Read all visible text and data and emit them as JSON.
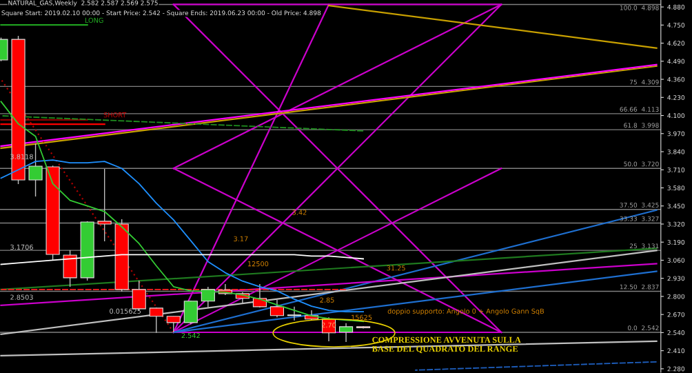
{
  "chart_data": {
    "type": "candlestick",
    "title": "NATURAL_GAS,Weekly  2.582 2.587 2.569 2.575",
    "subtitle": "Square Start: 2019.02.10 00:00 - Start Price: 2.542 - Square Ends: 2019.06.23 00:00 - Old Price: 4.898",
    "categories": [
      null,
      null,
      null,
      null,
      null,
      null,
      null,
      null,
      null,
      null,
      null,
      null,
      null,
      null,
      null,
      null,
      null,
      null,
      null,
      null,
      null,
      null,
      null,
      null,
      null,
      null,
      null,
      null,
      null,
      null,
      null,
      null,
      null,
      null,
      null,
      null,
      null,
      null,
      null
    ],
    "ohlc": [
      [
        4.499,
        4.66,
        4.49,
        4.647
      ],
      [
        4.647,
        4.672,
        3.607,
        3.637
      ],
      [
        3.637,
        3.899,
        3.518,
        3.736
      ],
      [
        3.731,
        3.74,
        3.058,
        3.102
      ],
      [
        3.097,
        3.132,
        2.869,
        2.934
      ],
      [
        2.934,
        3.34,
        2.914,
        3.335
      ],
      [
        3.34,
        3.716,
        3.196,
        3.32
      ],
      [
        3.32,
        3.355,
        2.835,
        2.85
      ],
      [
        2.85,
        2.914,
        2.7,
        2.711
      ],
      [
        2.716,
        2.72,
        2.538,
        2.657
      ],
      [
        2.657,
        2.657,
        2.542,
        2.612
      ],
      [
        2.612,
        2.77,
        2.6,
        2.766
      ],
      [
        2.766,
        2.869,
        2.721,
        2.85
      ],
      [
        2.845,
        2.889,
        2.81,
        2.82
      ],
      [
        2.82,
        2.83,
        2.746,
        2.786
      ],
      [
        2.786,
        2.889,
        2.72,
        2.726
      ],
      [
        2.726,
        2.775,
        2.65,
        2.662
      ],
      [
        2.667,
        2.726,
        2.627,
        2.662
      ],
      [
        2.662,
        2.7,
        2.63,
        2.637
      ],
      [
        2.637,
        2.65,
        2.478,
        2.538
      ],
      [
        2.543,
        2.607,
        2.473,
        2.582
      ],
      [
        2.582,
        2.587,
        2.569,
        2.575
      ],
      null,
      null,
      null,
      null,
      null,
      null,
      null,
      null,
      null,
      null,
      null,
      null,
      null,
      null,
      null,
      null,
      null
    ],
    "colors": [
      "#33cc33",
      "#ff0000",
      "#33cc33",
      "#ff0000",
      "#ff0000",
      "#33cc33",
      "#ff0000",
      "#ff0000",
      "#ff0000",
      "#ff0000",
      "#ff0000",
      "#33cc33",
      "#33cc33",
      "#ff0000",
      "#ff0000",
      "#ff0000",
      "#ff0000",
      "#33cc33",
      "#ff0000",
      "#ff0000",
      "#33cc33",
      "#ff0000",
      null,
      null,
      null,
      null,
      null,
      null,
      null,
      null,
      null,
      null,
      null,
      null,
      null,
      null,
      null,
      null,
      null
    ],
    "series": [
      {
        "type": "line",
        "color": "#1e90ff",
        "values": [
          3.65,
          3.71,
          3.77,
          3.78,
          3.76,
          3.76,
          3.77,
          3.72,
          3.61,
          3.47,
          3.35,
          3.2,
          3.05,
          2.97,
          2.91,
          2.87,
          2.84,
          2.78,
          2.73,
          2.7,
          2.69,
          2.69,
          null,
          null,
          null,
          null,
          null,
          null,
          null,
          null,
          null,
          null,
          null,
          null,
          null,
          null,
          null,
          null,
          null
        ]
      },
      {
        "type": "line",
        "color": "#33cc33",
        "values": [
          4.2,
          4.04,
          3.95,
          3.61,
          3.49,
          3.45,
          3.41,
          3.3,
          3.18,
          3.02,
          2.87,
          2.84,
          2.835,
          2.83,
          2.81,
          2.78,
          2.74,
          2.7,
          2.66,
          2.64,
          2.63,
          2.62,
          null,
          null,
          null,
          null,
          null,
          null,
          null,
          null,
          null,
          null,
          null,
          null,
          null,
          null,
          null,
          null,
          null
        ]
      },
      {
        "type": "line",
        "color": "#ffffff",
        "values": [
          3.03,
          3.04,
          3.05,
          3.06,
          3.07,
          3.08,
          3.09,
          3.1,
          3.1,
          3.1,
          3.1,
          3.1,
          3.1,
          3.1,
          3.1,
          3.1,
          3.1,
          3.1,
          3.09,
          3.09,
          3.08,
          3.07,
          null,
          null,
          null,
          null,
          null,
          null,
          null,
          null,
          null,
          null,
          null,
          null,
          null,
          null,
          null,
          null,
          null
        ]
      },
      {
        "type": "line",
        "color": "#cc00cc",
        "values": [
          null,
          null,
          null,
          null,
          null,
          null,
          null,
          null,
          null,
          null,
          2.542,
          null,
          null,
          null,
          null,
          null,
          null,
          null,
          null,
          null,
          null,
          null,
          null,
          null,
          null,
          null,
          null,
          null,
          null,
          2.542,
          null,
          null,
          null,
          null,
          null,
          null,
          null,
          null,
          null
        ]
      },
      {
        "type": "line",
        "color": "#cc00cc",
        "values": [
          null,
          null,
          null,
          null,
          null,
          null,
          null,
          null,
          null,
          null,
          4.898,
          null,
          null,
          null,
          null,
          null,
          null,
          null,
          null,
          null,
          null,
          null,
          null,
          null,
          null,
          null,
          null,
          null,
          null,
          4.898,
          null,
          null,
          null,
          null,
          null,
          null,
          null,
          null,
          null
        ]
      },
      {
        "type": "line",
        "color": "#cc00cc",
        "values": [
          null,
          null,
          null,
          null,
          null,
          null,
          null,
          null,
          null,
          null,
          4.898,
          null,
          null,
          null,
          null,
          null,
          null,
          null,
          null,
          null,
          null,
          null,
          null,
          null,
          null,
          null,
          null,
          null,
          null,
          2.542,
          null,
          null,
          null,
          null,
          null,
          null,
          null,
          null,
          null
        ]
      },
      {
        "type": "line",
        "color": "#cc00cc",
        "values": [
          null,
          null,
          null,
          null,
          null,
          null,
          null,
          null,
          null,
          null,
          3.72,
          null,
          null,
          null,
          null,
          null,
          null,
          null,
          null,
          null,
          null,
          null,
          null,
          null,
          null,
          null,
          null,
          null,
          null,
          4.898,
          null,
          null,
          null,
          null,
          null,
          null,
          null,
          null,
          null
        ]
      },
      {
        "type": "line",
        "color": "#cc00cc",
        "values": [
          null,
          null,
          null,
          null,
          null,
          null,
          null,
          null,
          null,
          null,
          3.72,
          null,
          null,
          null,
          null,
          null,
          null,
          null,
          null,
          null,
          null,
          null,
          null,
          null,
          null,
          null,
          null,
          null,
          null,
          2.542,
          null,
          null,
          null,
          null,
          null,
          null,
          null,
          null,
          null
        ]
      },
      {
        "type": "line",
        "color": "#cc00cc",
        "values": [
          null,
          null,
          null,
          null,
          null,
          null,
          null,
          null,
          null,
          null,
          2.542,
          null,
          null,
          null,
          null,
          null,
          null,
          null,
          null,
          null,
          null,
          null,
          null,
          null,
          null,
          null,
          null,
          null,
          null,
          3.72,
          null,
          null,
          null,
          null,
          null,
          null,
          null,
          null,
          null
        ]
      },
      {
        "type": "line",
        "color": "#cc00cc",
        "values": [
          null,
          null,
          null,
          null,
          null,
          null,
          null,
          null,
          null,
          null,
          2.542,
          null,
          null,
          null,
          null,
          null,
          null,
          null,
          null,
          null,
          null,
          null,
          null,
          null,
          null,
          null,
          null,
          null,
          null,
          4.898,
          null,
          null,
          null,
          null,
          null,
          null,
          null,
          null,
          null
        ]
      },
      {
        "type": "line",
        "color": "#cc00cc",
        "values": [
          null,
          null,
          null,
          null,
          null,
          null,
          null,
          null,
          null,
          null,
          2.542,
          null,
          null,
          null,
          null,
          null,
          null,
          null,
          null,
          4.898,
          null,
          null,
          null,
          null,
          null,
          null,
          null,
          null,
          null,
          null,
          null,
          null,
          null,
          null,
          null,
          null,
          null,
          null,
          null
        ]
      },
      {
        "type": "line",
        "color": "#c8a000",
        "values": [
          3.865,
          null,
          null,
          null,
          null,
          null,
          null,
          null,
          null,
          null,
          null,
          null,
          null,
          null,
          null,
          null,
          null,
          null,
          null,
          null,
          null,
          null,
          null,
          null,
          null,
          null,
          null,
          null,
          null,
          null,
          null,
          null,
          null,
          null,
          null,
          null,
          null,
          null,
          4.455
        ]
      },
      {
        "type": "line",
        "color": "#ff00ff",
        "values": [
          3.88,
          null,
          null,
          null,
          null,
          null,
          null,
          null,
          null,
          null,
          null,
          null,
          null,
          null,
          null,
          null,
          null,
          null,
          null,
          null,
          null,
          null,
          null,
          null,
          null,
          null,
          null,
          null,
          null,
          null,
          null,
          null,
          null,
          null,
          null,
          null,
          null,
          null,
          4.465
        ]
      },
      {
        "type": "line",
        "color": "#c8a000",
        "values": [
          null,
          null,
          null,
          null,
          null,
          null,
          null,
          null,
          null,
          null,
          null,
          null,
          null,
          null,
          null,
          null,
          null,
          null,
          null,
          4.89,
          null,
          null,
          null,
          null,
          null,
          null,
          null,
          null,
          null,
          null,
          null,
          null,
          null,
          null,
          null,
          null,
          null,
          null,
          4.585
        ]
      },
      {
        "type": "line",
        "color": "#1e6fd0",
        "values": [
          null,
          null,
          null,
          null,
          null,
          null,
          null,
          null,
          null,
          null,
          2.542,
          null,
          null,
          null,
          null,
          null,
          null,
          null,
          null,
          null,
          null,
          null,
          null,
          null,
          null,
          null,
          null,
          null,
          null,
          null,
          null,
          null,
          null,
          null,
          null,
          null,
          null,
          null,
          3.42
        ]
      },
      {
        "type": "line",
        "color": "#1e6fd0",
        "values": [
          null,
          null,
          null,
          null,
          null,
          null,
          null,
          null,
          null,
          null,
          2.542,
          null,
          null,
          null,
          null,
          null,
          null,
          null,
          null,
          null,
          null,
          null,
          null,
          null,
          null,
          null,
          null,
          null,
          null,
          null,
          null,
          null,
          null,
          null,
          null,
          null,
          null,
          null,
          2.98
        ]
      },
      {
        "type": "line",
        "color": "#1f7a1f",
        "values": [
          2.85,
          null,
          null,
          null,
          null,
          null,
          null,
          null,
          null,
          null,
          null,
          null,
          null,
          null,
          null,
          null,
          null,
          null,
          null,
          null,
          null,
          null,
          null,
          null,
          null,
          null,
          null,
          null,
          null,
          null,
          null,
          null,
          null,
          null,
          null,
          null,
          null,
          null,
          3.145
        ]
      },
      {
        "type": "line",
        "color": "#cc00cc",
        "values": [
          2.736,
          null,
          null,
          null,
          null,
          null,
          null,
          null,
          null,
          null,
          null,
          null,
          null,
          null,
          null,
          null,
          null,
          null,
          null,
          null,
          null,
          null,
          null,
          null,
          null,
          null,
          null,
          null,
          null,
          null,
          null,
          null,
          null,
          null,
          null,
          null,
          null,
          null,
          3.035
        ]
      },
      {
        "type": "line",
        "color": "#c0c0c0",
        "values": [
          2.528,
          null,
          null,
          null,
          null,
          null,
          null,
          null,
          null,
          null,
          null,
          null,
          null,
          null,
          null,
          null,
          null,
          null,
          null,
          null,
          null,
          null,
          null,
          null,
          null,
          null,
          null,
          null,
          null,
          null,
          null,
          null,
          null,
          null,
          null,
          null,
          null,
          null,
          3.13
        ]
      },
      {
        "type": "line",
        "color": "#c0c0c0",
        "values": [
          2.374,
          null,
          null,
          null,
          null,
          null,
          null,
          null,
          null,
          null,
          null,
          null,
          null,
          null,
          null,
          null,
          null,
          null,
          null,
          null,
          null,
          null,
          null,
          null,
          null,
          null,
          null,
          null,
          null,
          null,
          null,
          null,
          null,
          null,
          null,
          null,
          null,
          null,
          2.478
        ]
      },
      {
        "type": "line",
        "color": "#1e5fbf",
        "line_style": "dashed",
        "values": [
          null,
          null,
          null,
          null,
          null,
          null,
          null,
          null,
          null,
          null,
          null,
          null,
          null,
          null,
          null,
          null,
          null,
          null,
          null,
          null,
          null,
          null,
          null,
          null,
          2.27,
          null,
          null,
          null,
          null,
          null,
          null,
          null,
          null,
          null,
          null,
          null,
          null,
          null,
          2.33
        ]
      },
      {
        "type": "line",
        "color": "#1f8f1f",
        "line_style": "dashed",
        "values": [
          4.098,
          null,
          null,
          null,
          null,
          null,
          null,
          null,
          null,
          null,
          null,
          null,
          null,
          null,
          null,
          null,
          null,
          null,
          null,
          null,
          null,
          3.989,
          null,
          null,
          null,
          null,
          null,
          null,
          null,
          null,
          null,
          null,
          null,
          null,
          null,
          null,
          null,
          null,
          null
        ]
      },
      {
        "type": "line",
        "color": "#8b0000",
        "values": [
          4.068,
          null,
          null,
          null,
          null,
          4.068,
          null,
          null,
          null,
          null,
          null,
          null,
          null,
          null,
          null,
          null,
          null,
          null,
          null,
          null,
          null,
          null,
          null,
          null,
          null,
          null,
          null,
          null,
          null,
          null,
          null,
          null,
          null,
          null,
          null,
          null,
          null,
          null,
          null
        ]
      },
      {
        "type": "line",
        "color": "#ff0000",
        "values": [
          4.038,
          null,
          null,
          null,
          null,
          null,
          4.038,
          null,
          null,
          null,
          null,
          null,
          null,
          null,
          null,
          null,
          null,
          null,
          null,
          null,
          null,
          null,
          null,
          null,
          null,
          null,
          null,
          null,
          null,
          null,
          null,
          null,
          null,
          null,
          null,
          null,
          null,
          null,
          null
        ]
      },
      {
        "type": "line",
        "color": "#1f9f1f",
        "values": [
          4.751,
          null,
          null,
          null,
          null,
          4.751,
          null,
          null,
          null,
          null,
          null,
          null,
          null,
          null,
          null,
          null,
          null,
          null,
          null,
          null,
          null,
          null,
          null,
          null,
          null,
          null,
          null,
          null,
          null,
          null,
          null,
          null,
          null,
          null,
          null,
          null,
          null,
          null,
          null
        ]
      },
      {
        "type": "line",
        "color": "#ff2020",
        "line_style": "dashed",
        "values": [
          2.85,
          null,
          null,
          null,
          null,
          null,
          null,
          null,
          null,
          null,
          null,
          null,
          null,
          null,
          null,
          null,
          null,
          null,
          null,
          null,
          2.85,
          null,
          null,
          null,
          null,
          null,
          null,
          null,
          null,
          null,
          null,
          null,
          null,
          null,
          null,
          null,
          null,
          null,
          null
        ]
      },
      {
        "type": "line",
        "color": "#b00000",
        "line_style": "dotted",
        "values": [
          4.36,
          null,
          null,
          null,
          null,
          null,
          null,
          null,
          null,
          null,
          2.542,
          null,
          null,
          null,
          null,
          null,
          null,
          null,
          null,
          null,
          null,
          null,
          null,
          null,
          null,
          null,
          null,
          null,
          null,
          null,
          null,
          null,
          null,
          null,
          null,
          null,
          null,
          null,
          null
        ]
      }
    ],
    "ref_lines": [
      {
        "axis": "y",
        "value": 4.898,
        "label": "100.0  4.898",
        "color": "#808080"
      },
      {
        "axis": "y",
        "value": 4.309,
        "label": "75  4.309",
        "color": "#808080"
      },
      {
        "axis": "y",
        "value": 4.113,
        "label": "66.66  4.113",
        "color": "#808080"
      },
      {
        "axis": "y",
        "value": 3.998,
        "label": "61.8  3.998",
        "color": "#808080"
      },
      {
        "axis": "y",
        "value": 3.72,
        "label": "50.0  3.720",
        "color": "#808080"
      },
      {
        "axis": "y",
        "value": 3.425,
        "label": "37.50  3.425",
        "color": "#808080"
      },
      {
        "axis": "y",
        "value": 3.327,
        "label": "33.33  3.327",
        "color": "#808080"
      },
      {
        "axis": "y",
        "value": 3.131,
        "label": "25  3.131",
        "color": "#808080"
      },
      {
        "axis": "y",
        "value": 2.837,
        "label": "12.50  2.837",
        "color": "#808080"
      },
      {
        "axis": "y",
        "value": 2.542,
        "label": "0.0  2.542",
        "color": "#808080"
      }
    ],
    "annotations": [
      "LONG",
      "SHORT",
      "3.8118",
      "3.1706",
      "2.8503",
      "0.015625",
      "3.42",
      "3.17",
      "12500",
      "31.25",
      "2.85",
      "2.70",
      "15625",
      "2.542",
      "doppio supporto: Angolo 0 + Angolo Gann SqB",
      "COMPRESSIONE AVVENUTA SULLA\nBASE DEL QUADRATO DEL RANGE"
    ],
    "ylim": [
      2.255,
      4.93
    ],
    "yticks": [
      {
        "value": 4.88,
        "label": "4.880"
      },
      {
        "value": 4.75,
        "label": "4.750"
      },
      {
        "value": 4.62,
        "label": "4.620"
      },
      {
        "value": 4.49,
        "label": "4.490"
      },
      {
        "value": 4.36,
        "label": "4.360"
      },
      {
        "value": 4.23,
        "label": "4.230"
      },
      {
        "value": 4.1,
        "label": "4.100"
      },
      {
        "value": 3.97,
        "label": "3.970"
      },
      {
        "value": 3.84,
        "label": "3.840"
      },
      {
        "value": 3.71,
        "label": "3.710"
      },
      {
        "value": 3.58,
        "label": "3.580"
      },
      {
        "value": 3.45,
        "label": "3.450"
      },
      {
        "value": 3.32,
        "label": "3.320"
      },
      {
        "value": 3.19,
        "label": "3.190"
      },
      {
        "value": 3.06,
        "label": "3.060"
      },
      {
        "value": 2.93,
        "label": "2.930"
      },
      {
        "value": 2.8,
        "label": "2.800"
      },
      {
        "value": 2.67,
        "label": "2.670"
      },
      {
        "value": 2.54,
        "label": "2.540"
      },
      {
        "value": 2.41,
        "label": "2.410"
      },
      {
        "value": 2.28,
        "label": "2.280"
      }
    ],
    "tick_labels": "y",
    "grid": false
  }
}
